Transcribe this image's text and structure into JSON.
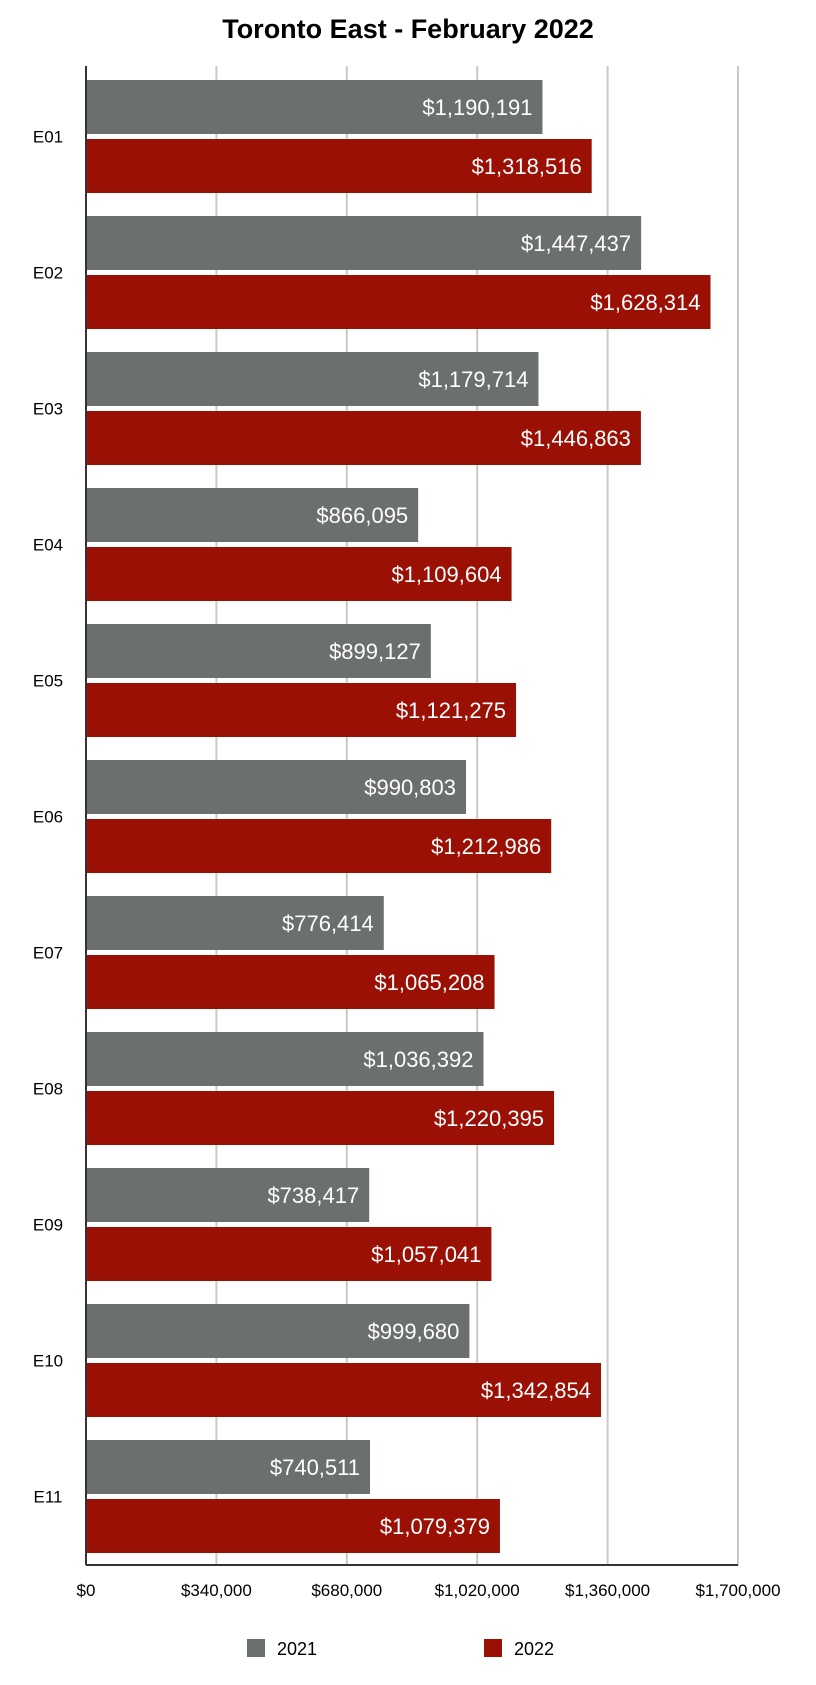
{
  "chart_data": {
    "type": "bar",
    "orientation": "horizontal",
    "title": "Toronto East - February 2022",
    "xlabel": "",
    "ylabel": "",
    "categories": [
      "E01",
      "E02",
      "E03",
      "E04",
      "E05",
      "E06",
      "E07",
      "E08",
      "E09",
      "E10",
      "E11"
    ],
    "series": [
      {
        "name": "2021",
        "color": "#6b706c",
        "values": [
          1190191,
          1447437,
          1179714,
          866095,
          899127,
          990803,
          776414,
          1036392,
          738417,
          999680,
          740511
        ],
        "labels": [
          "$1,190,191",
          "$1,447,437",
          "$1,179,714",
          "$866,095",
          "$899,127",
          "$990,803",
          "$776,414",
          "$1,036,392",
          "$738,417",
          "$999,680",
          "$740,511"
        ]
      },
      {
        "name": "2022",
        "color": "#9a1005",
        "values": [
          1318516,
          1628314,
          1446863,
          1109604,
          1121275,
          1212986,
          1065208,
          1220395,
          1057041,
          1342854,
          1079379
        ],
        "labels": [
          "$1,318,516",
          "$1,628,314",
          "$1,446,863",
          "$1,109,604",
          "$1,121,275",
          "$1,212,986",
          "$1,065,208",
          "$1,220,395",
          "$1,057,041",
          "$1,342,854",
          "$1,079,379"
        ]
      }
    ],
    "xlim": [
      0,
      1700000
    ],
    "xticks": [
      0,
      340000,
      680000,
      1020000,
      1360000,
      1700000
    ],
    "xtick_labels": [
      "$0",
      "$340,000",
      "$680,000",
      "$1,020,000",
      "$1,360,000",
      "$1,700,000"
    ],
    "grid": true,
    "legend_position": "bottom",
    "label_color": "#ffffff",
    "grid_color": "#c9c9c9",
    "axis_color": "#333333",
    "text_color": "#000000"
  }
}
